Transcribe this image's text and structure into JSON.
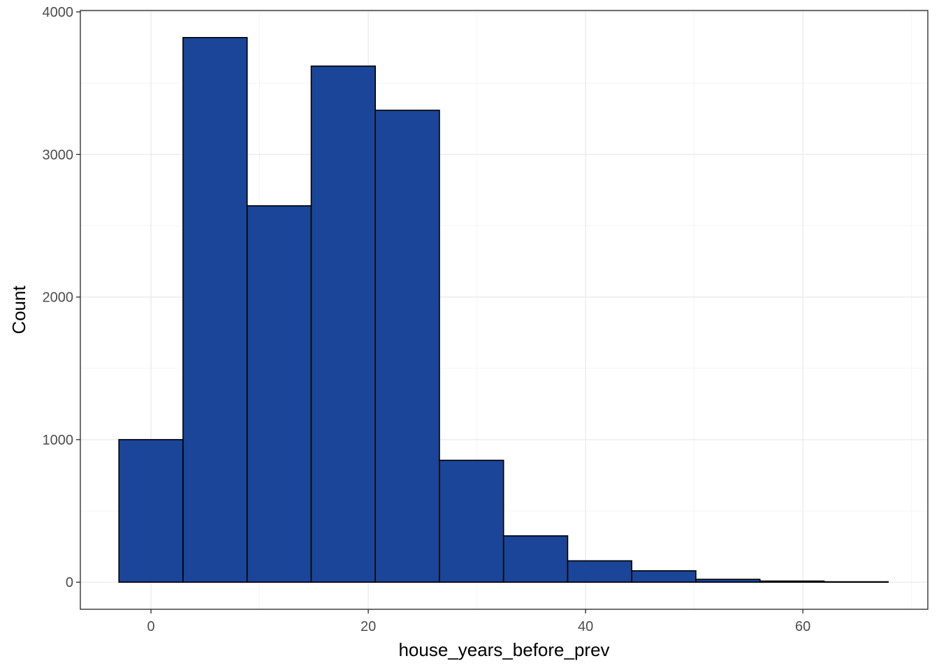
{
  "chart_data": {
    "type": "bar",
    "subtype": "histogram",
    "xlabel": "house_years_before_prev",
    "ylabel": "Count",
    "xlim": [
      -6.5,
      71.5
    ],
    "ylim": [
      -190,
      4010
    ],
    "x_ticks": [
      0,
      20,
      40,
      60
    ],
    "y_ticks": [
      0,
      1000,
      2000,
      3000,
      4000
    ],
    "bins": [
      {
        "x0": -2.95,
        "x1": 2.95,
        "count": 1000
      },
      {
        "x0": 2.95,
        "x1": 8.85,
        "count": 3820
      },
      {
        "x0": 8.85,
        "x1": 14.75,
        "count": 2640
      },
      {
        "x0": 14.75,
        "x1": 20.65,
        "count": 3620
      },
      {
        "x0": 20.65,
        "x1": 26.55,
        "count": 3310
      },
      {
        "x0": 26.55,
        "x1": 32.45,
        "count": 855
      },
      {
        "x0": 32.45,
        "x1": 38.35,
        "count": 325
      },
      {
        "x0": 38.35,
        "x1": 44.25,
        "count": 150
      },
      {
        "x0": 44.25,
        "x1": 50.15,
        "count": 80
      },
      {
        "x0": 50.15,
        "x1": 56.05,
        "count": 20
      },
      {
        "x0": 56.05,
        "x1": 61.95,
        "count": 8
      },
      {
        "x0": 61.95,
        "x1": 67.85,
        "count": 3
      }
    ],
    "grid": true,
    "legend": "none",
    "colors": {
      "bar_fill": "#1a4599",
      "bar_outline": "#000000",
      "panel_border": "#333333",
      "background": "#ffffff"
    }
  }
}
